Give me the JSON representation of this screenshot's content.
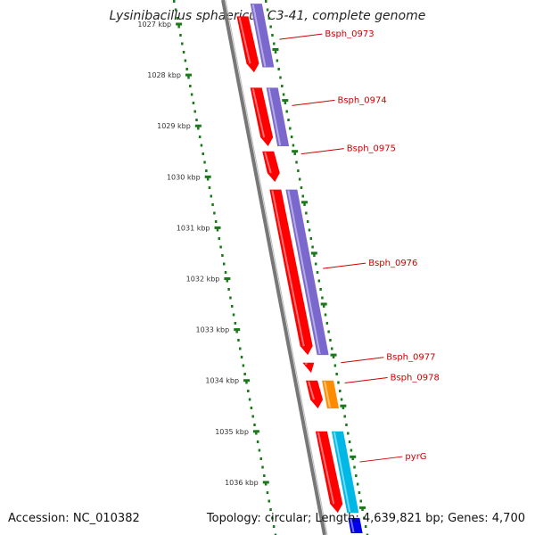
{
  "title": "Lysinibacillus sphaericus C3-41, complete genome",
  "accession": "Accession: NC_010382",
  "summary": "Topology: circular; Length: 4,639,821 bp; Genes: 4,700",
  "colors": {
    "backbone": "#777777",
    "gene_forward": "#ff0000",
    "gene_homolog": "#7b68cc",
    "gene_orange": "#ff8c00",
    "gene_cyan": "#00b8e6",
    "gene_blue": "#0000ee",
    "tick_dots": "#1a7a1a",
    "label_red": "#cc0000"
  },
  "kbp_ticks": [
    "1027 kbp",
    "1028 kbp",
    "1029 kbp",
    "1030 kbp",
    "1031 kbp",
    "1032 kbp",
    "1033 kbp",
    "1034 kbp",
    "1035 kbp",
    "1036 kbp"
  ],
  "genes": [
    {
      "label": "Bsph_0973",
      "start_kbp": 1026.85,
      "end_kbp": 1027.95,
      "strand": "+",
      "color": "#ff0000"
    },
    {
      "label": "Bsph_0973",
      "start_kbp": 1026.6,
      "end_kbp": 1027.85,
      "strand": "homolog",
      "color": "#7b68cc"
    },
    {
      "label": "Bsph_0974",
      "start_kbp": 1028.25,
      "end_kbp": 1029.4,
      "strand": "+",
      "color": "#ff0000"
    },
    {
      "label": "Bsph_0974",
      "start_kbp": 1028.25,
      "end_kbp": 1029.4,
      "strand": "homolog",
      "color": "#7b68cc"
    },
    {
      "label": "Bsph_0975",
      "start_kbp": 1029.5,
      "end_kbp": 1030.1,
      "strand": "+",
      "color": "#ff0000"
    },
    {
      "label": "Bsph_0976",
      "start_kbp": 1030.25,
      "end_kbp": 1033.5,
      "strand": "+",
      "color": "#ff0000"
    },
    {
      "label": "Bsph_0976",
      "start_kbp": 1030.25,
      "end_kbp": 1033.5,
      "strand": "homolog",
      "color": "#7b68cc"
    },
    {
      "label": "Bsph_0977",
      "start_kbp": 1033.65,
      "end_kbp": 1033.85,
      "strand": "+",
      "color": "#ff0000"
    },
    {
      "label": "Bsph_0978",
      "start_kbp": 1034.0,
      "end_kbp": 1034.55,
      "strand": "+",
      "color": "#ff0000"
    },
    {
      "label": "Bsph_0978",
      "start_kbp": 1034.0,
      "end_kbp": 1034.55,
      "strand": "homolog",
      "color": "#ff8c00"
    },
    {
      "label": "pyrG",
      "start_kbp": 1035.0,
      "end_kbp": 1036.6,
      "strand": "+",
      "color": "#ff0000"
    },
    {
      "label": "pyrG",
      "start_kbp": 1035.0,
      "end_kbp": 1036.6,
      "strand": "homolog",
      "color": "#00b8e6"
    },
    {
      "label": "",
      "start_kbp": 1036.7,
      "end_kbp": 1037.0,
      "strand": "homolog",
      "color": "#0000ee"
    }
  ],
  "gene_labels": [
    {
      "text": "Bsph_0973",
      "kbp": 1027.3
    },
    {
      "text": "Bsph_0974",
      "kbp": 1028.6
    },
    {
      "text": "Bsph_0975",
      "kbp": 1029.55
    },
    {
      "text": "Bsph_0976",
      "kbp": 1031.8
    },
    {
      "text": "Bsph_0977",
      "kbp": 1033.65
    },
    {
      "text": "Bsph_0978",
      "kbp": 1034.05
    },
    {
      "text": "pyrG",
      "kbp": 1035.6
    }
  ]
}
